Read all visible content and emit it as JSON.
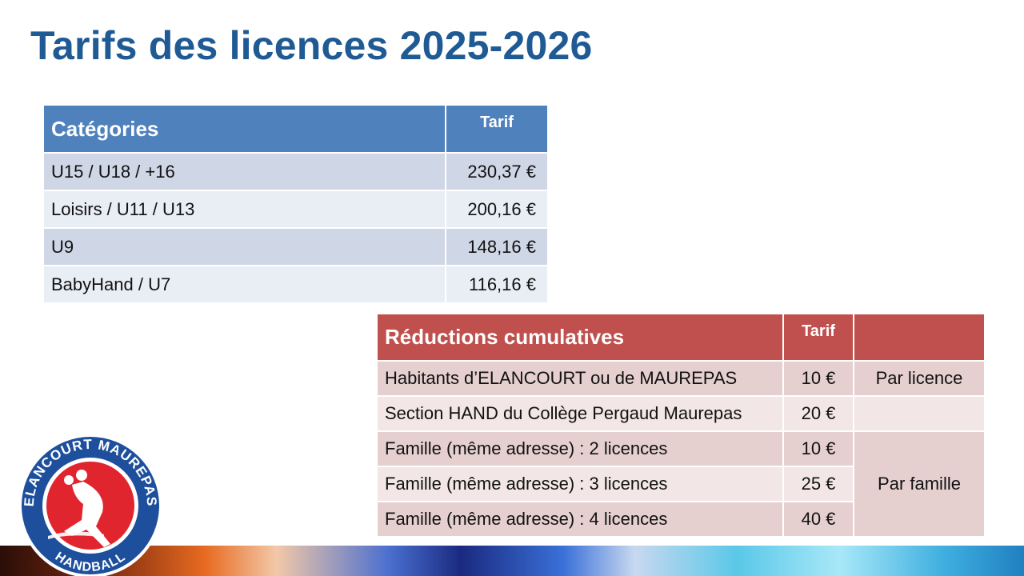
{
  "title": "Tarifs des licences 2025-2026",
  "categories_table": {
    "headers": [
      "Catégories",
      "Tarif"
    ],
    "rows": [
      {
        "category": "U15 / U18 / +16",
        "price": "230,37 €"
      },
      {
        "category": "Loisirs / U11 / U13",
        "price": "200,16 €"
      },
      {
        "category": "U9",
        "price": "148,16 €"
      },
      {
        "category": "BabyHand /  U7",
        "price": "116,16 €"
      }
    ]
  },
  "reductions_table": {
    "headers": [
      "Réductions cumulatives",
      "Tarif",
      ""
    ],
    "rows": [
      {
        "label": "Habitants d’ELANCOURT ou de MAUREPAS",
        "amount": "10 €",
        "scope": "Par licence"
      },
      {
        "label": "Section HAND du Collège Pergaud Maurepas",
        "amount": "20 €",
        "scope": ""
      },
      {
        "label": "Famille (même adresse) : 2 licences",
        "amount": "10 €"
      },
      {
        "label": "Famille (même adresse) : 3 licences",
        "amount": "25 €",
        "scope": "Par famille"
      },
      {
        "label": "Famille (même adresse) : 4 licences",
        "amount": "40 €"
      }
    ]
  },
  "logo": {
    "top_text": "ELANCOURT MAUREPAS",
    "bottom_text": "HANDBALL",
    "colors": {
      "ring": "#1d4f9c",
      "center": "#e0252f"
    }
  },
  "colors": {
    "title": "#1f5a94",
    "categories_header": "#4f81bd",
    "reductions_header": "#c0504d"
  }
}
